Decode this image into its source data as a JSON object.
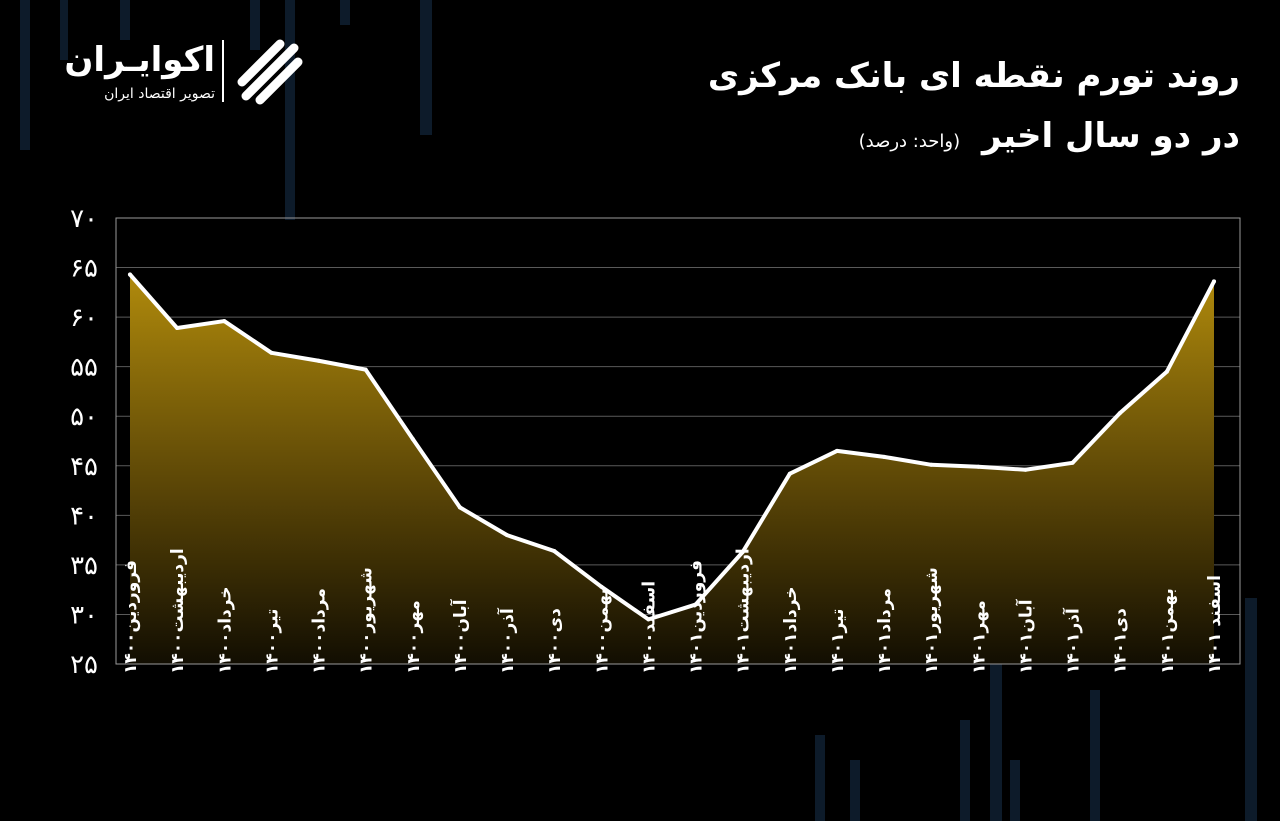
{
  "brand": {
    "name": "اکوایـران",
    "tagline": "تصویر اقتصاد ایران"
  },
  "title": {
    "line1": "روند تورم نقطه ای بانک مرکزی",
    "line2": "در دو سال اخیر",
    "unit": "(واحد: درصد)"
  },
  "colors": {
    "background": "#000000",
    "area_top": "#a8820a",
    "line": "#ffffff",
    "grid": "#5a5a5a"
  },
  "chart_data": {
    "type": "area",
    "title": "روند تورم نقطه ای بانک مرکزی در دو سال اخیر",
    "ylabel": "(واحد: درصد)",
    "ylim": [
      25,
      70
    ],
    "yticks": [
      {
        "value": 25,
        "label": "۲۵"
      },
      {
        "value": 30,
        "label": "۳۰"
      },
      {
        "value": 35,
        "label": "۳۵"
      },
      {
        "value": 40,
        "label": "۴۰"
      },
      {
        "value": 45,
        "label": "۴۵"
      },
      {
        "value": 50,
        "label": "۵۰"
      },
      {
        "value": 55,
        "label": "۵۵"
      },
      {
        "value": 60,
        "label": "۶۰"
      },
      {
        "value": 65,
        "label": "۶۵"
      },
      {
        "value": 70,
        "label": "۷۰"
      }
    ],
    "categories": [
      "فروردین۱۴۰۰",
      "اردیبهشت۱۴۰۰",
      "خرداد۱۴۰۰",
      "تیر۱۴۰۰",
      "مرداد۱۴۰۰",
      "شهریور۱۴۰۰",
      "مهر۱۴۰۰",
      "آبان۱۴۰۰",
      "آذر۱۴۰۰",
      "دی۱۴۰۰",
      "بهمن۱۴۰۰",
      "اسفند۱۴۰۰",
      "فروردین۱۴۰۱",
      "اردیبهشت۱۴۰۱",
      "خرداد۱۴۰۱",
      "تیر۱۴۰۱",
      "مرداد۱۴۰۱",
      "شهریور۱۴۰۱",
      "مهر۱۴۰۱",
      "آبان۱۴۰۱",
      "آذر۱۴۰۱",
      "دی۱۴۰۱",
      "بهمن۱۴۰۱",
      "اسفند ۱۴۰۱"
    ],
    "values": [
      64.3,
      58.9,
      59.6,
      56.4,
      55.6,
      54.7,
      47.7,
      40.8,
      38.0,
      36.4,
      32.8,
      29.5,
      31.0,
      36.3,
      44.2,
      46.5,
      45.9,
      45.1,
      44.9,
      44.6,
      45.3,
      50.3,
      54.5,
      63.6
    ],
    "grid": true,
    "legend": "none"
  }
}
